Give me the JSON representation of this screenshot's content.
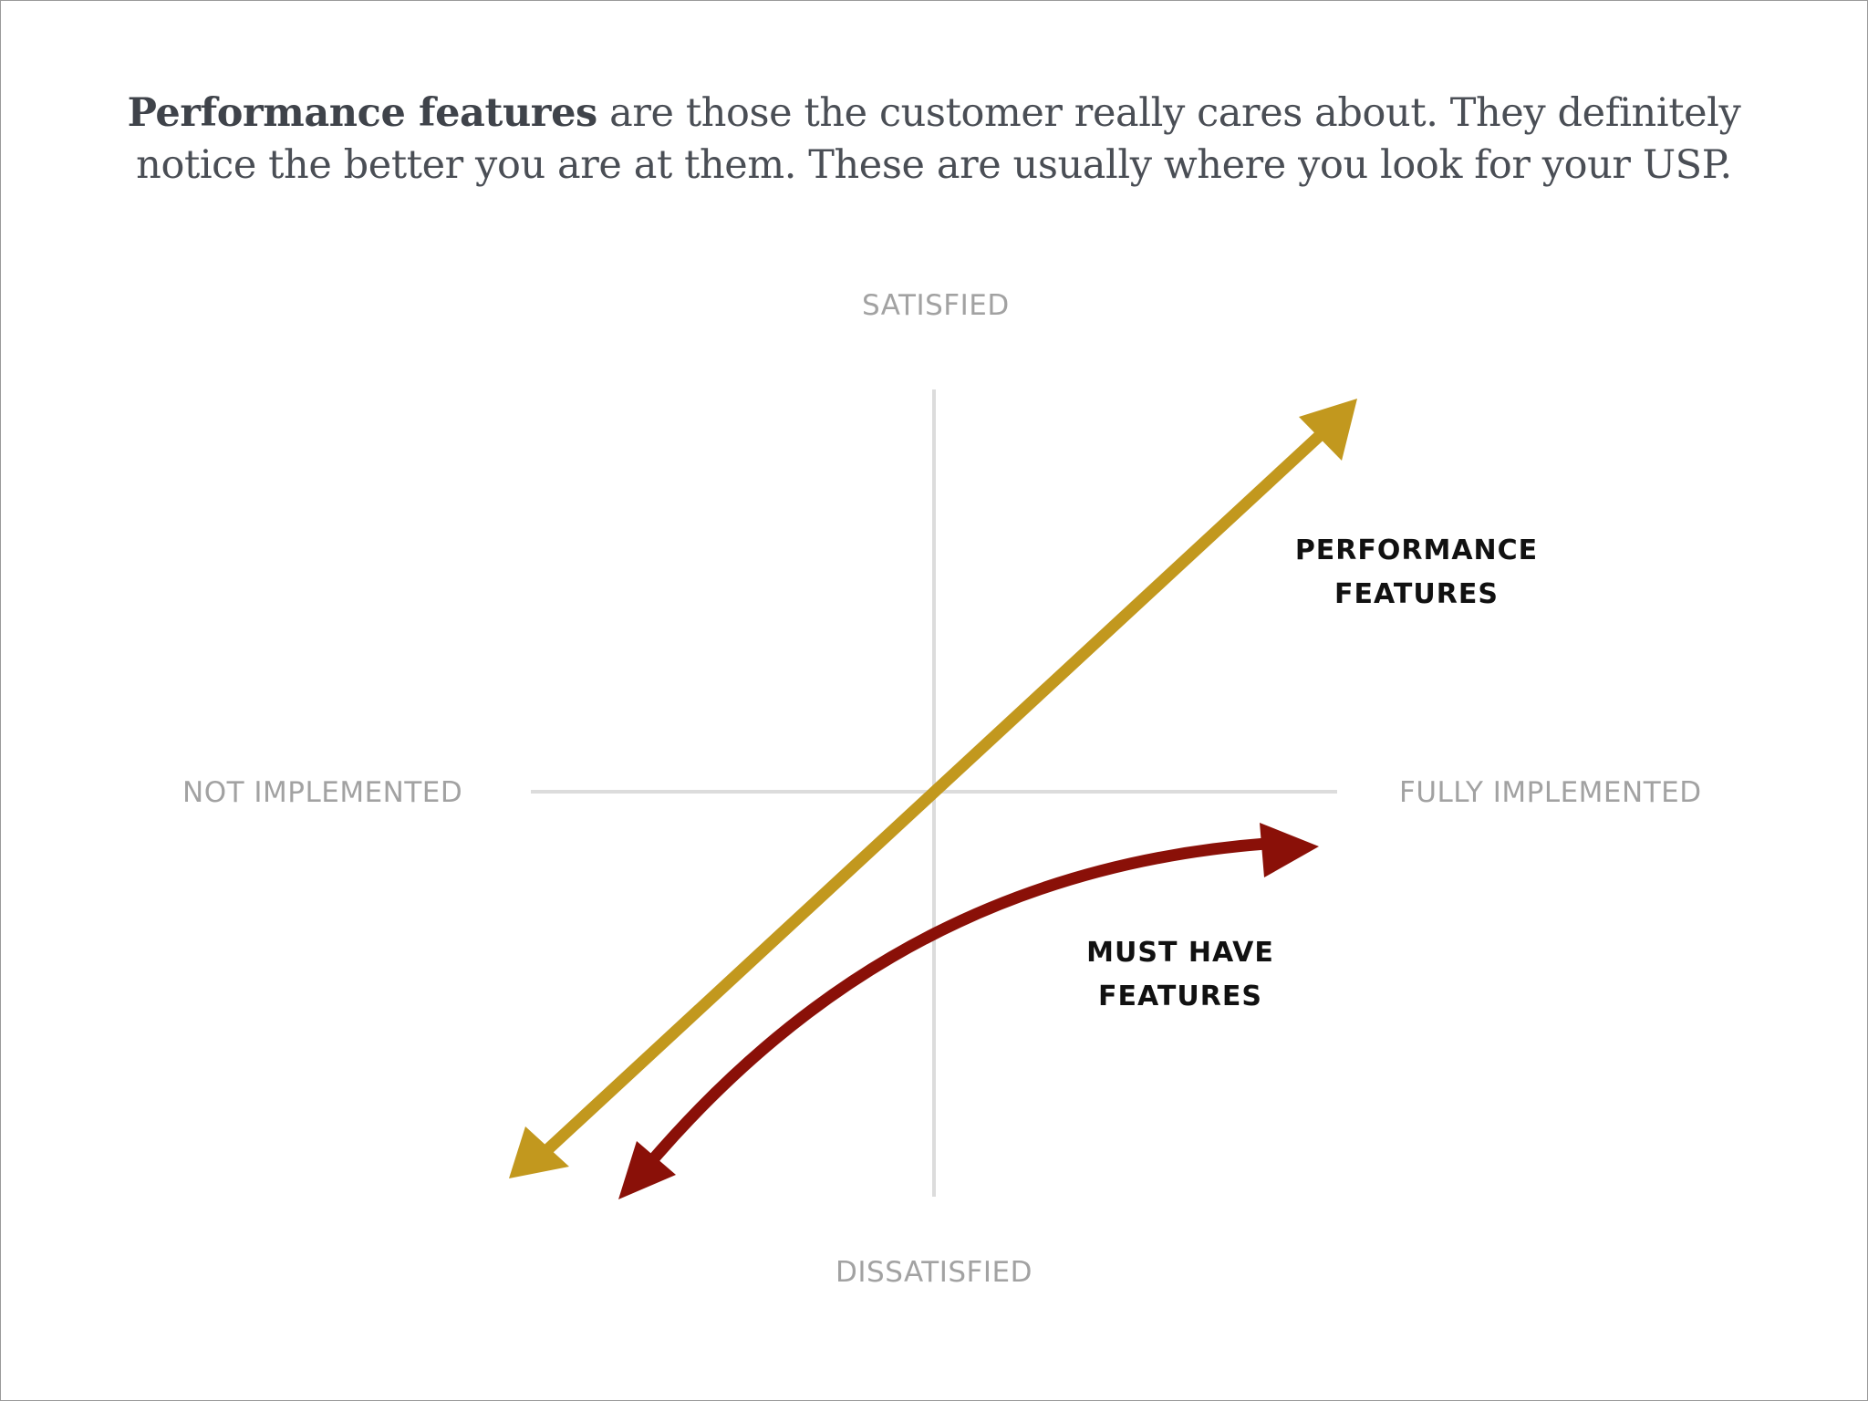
{
  "intro": {
    "bold": "Performance features",
    "rest": " are those the customer really cares about. They definitely notice the better you are at them. These are usually where you look for your USP."
  },
  "axes": {
    "top": "SATISFIED",
    "bottom": "DISSATISFIED",
    "left": "NOT IMPLEMENTED",
    "right": "FULLY IMPLEMENTED"
  },
  "series": {
    "performance": {
      "line1": "PERFORMANCE",
      "line2": "FEATURES",
      "color": "#c2981e"
    },
    "must_have": {
      "line1": "MUST HAVE",
      "line2": "FEATURES",
      "color": "#8a1008"
    }
  },
  "colors": {
    "axis_lines": "#dcdcdc",
    "axis_labels": "#a2a2a2",
    "intro_text": "#4a4e55"
  }
}
